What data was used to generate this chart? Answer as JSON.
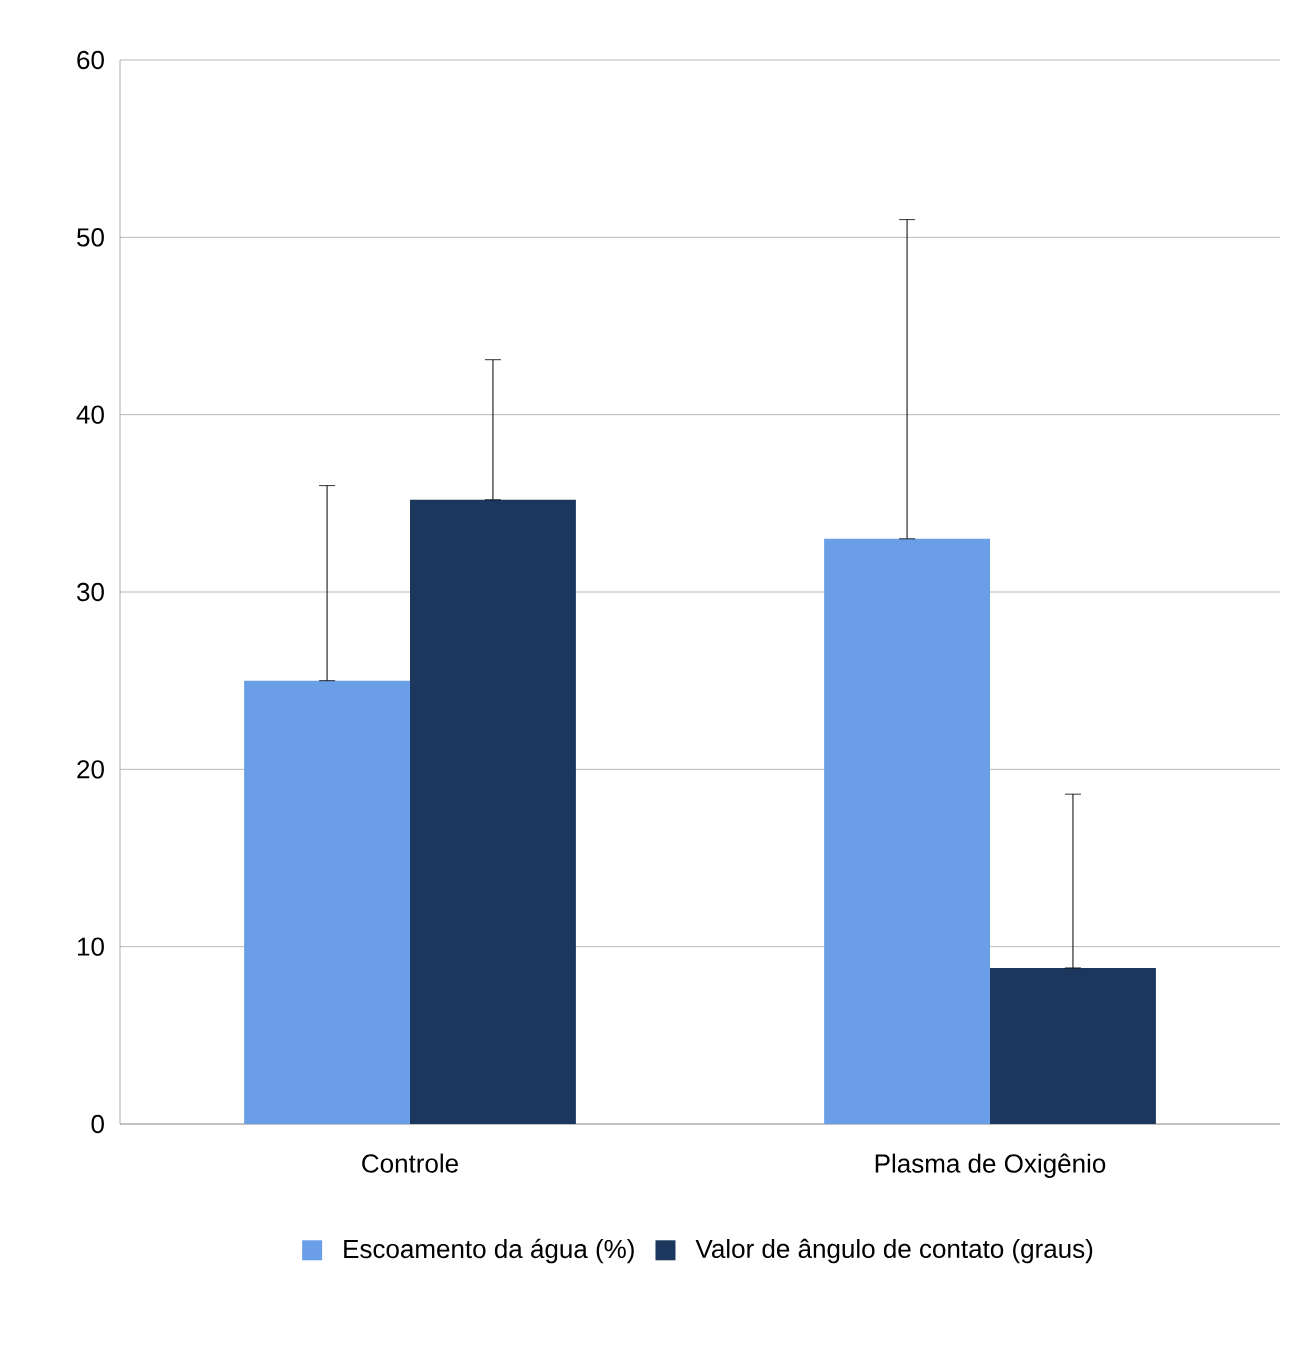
{
  "chart_data": {
    "type": "bar",
    "categories": [
      "Controle",
      "Plasma de Oxigênio"
    ],
    "series": [
      {
        "name": "Escoamento da água (%)",
        "color": "#6a9ee6",
        "values": [
          25,
          33
        ],
        "errors": [
          [
            25,
            36
          ],
          [
            33,
            51
          ]
        ]
      },
      {
        "name": "Valor de ângulo de contato (graus)",
        "color": "#1b375e",
        "values": [
          35.2,
          8.8
        ],
        "errors": [
          [
            35.2,
            43.1
          ],
          [
            8.8,
            18.6
          ]
        ]
      }
    ],
    "ylim": [
      0,
      60
    ],
    "yticks": [
      0,
      10,
      20,
      30,
      40,
      50,
      60
    ],
    "grid": "y",
    "legend": "bottom"
  }
}
